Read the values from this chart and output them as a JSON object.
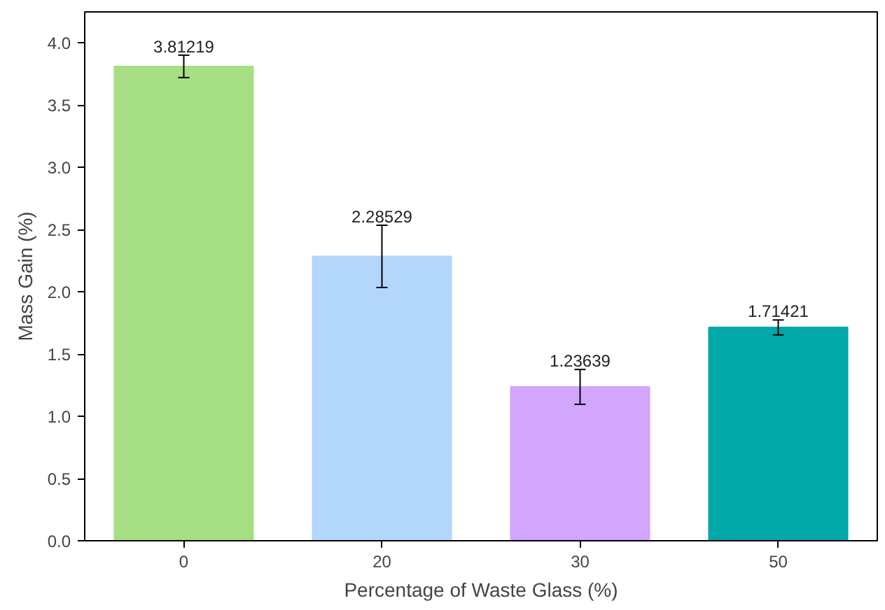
{
  "chart_data": {
    "type": "bar",
    "xlabel": "Percentage of Waste Glass (%)",
    "ylabel": "Mass Gain (%)",
    "categories": [
      "0",
      "20",
      "30",
      "50"
    ],
    "values": [
      3.81219,
      2.28529,
      1.23639,
      1.71421
    ],
    "colors": [
      "#a6df83",
      "#b3d6fb",
      "#d2a6fc",
      "#00a8a8"
    ],
    "errors": [
      0.09,
      0.25,
      0.14,
      0.06
    ],
    "data_labels": true,
    "ylim": [
      0,
      4.25
    ],
    "yticks": [
      {
        "value": 0,
        "label": "0.0"
      },
      0.5,
      {
        "value": 1,
        "label": "1.0"
      },
      1.5,
      {
        "value": 2,
        "label": "2.0"
      },
      2.5,
      {
        "value": 3,
        "label": "3.0"
      },
      3.5,
      {
        "value": 4,
        "label": "4.0"
      }
    ],
    "grid": false
  }
}
